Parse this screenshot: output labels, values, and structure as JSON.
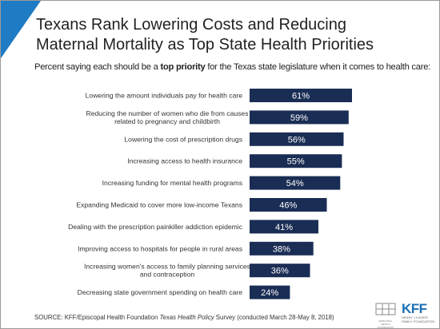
{
  "title": "Texans Rank Lowering Costs and Reducing Maternal Mortality as Top State Health Priorities",
  "subtitle": {
    "before": "Percent saying each should be a ",
    "bold": "top priority",
    "after": " for the Texas state legislature when it comes to health care:"
  },
  "chart_data": {
    "type": "bar",
    "orientation": "horizontal",
    "categories": [
      [
        "Lowering the amount individuals pay for health care"
      ],
      [
        "Reducing the number of women who die from causes",
        "related to pregnancy and childbirth"
      ],
      [
        "Lowering the cost of prescription drugs"
      ],
      [
        "Increasing access to health insurance"
      ],
      [
        "Increasing funding for mental health programs"
      ],
      [
        "Expanding Medicaid to cover more low-income Texans"
      ],
      [
        "Dealing with the prescription painkiller addiction epidemic"
      ],
      [
        "Improving access to hospitals for people in rural areas"
      ],
      [
        "Increasing women's access to family planning services",
        "and contraception"
      ],
      [
        "Decreasing state government spending on health care"
      ]
    ],
    "values": [
      61,
      59,
      56,
      55,
      54,
      46,
      41,
      38,
      36,
      24
    ],
    "value_labels": [
      "61%",
      "59%",
      "56%",
      "55%",
      "54%",
      "46%",
      "41%",
      "38%",
      "36%",
      "24%"
    ],
    "bar_color": "#1a2d54",
    "value_label_color": "#ffffff",
    "xlim": [
      0,
      61
    ],
    "grid": false,
    "legend": "none"
  },
  "source": {
    "before": "SOURCE: KFF/Episcopal Health Foundation ",
    "italic": "Texas Health Policy",
    "after": " Survey (conducted March 28-May 8, 2018)"
  },
  "logos": {
    "ehf": "EPISCOPAL HEALTH FOUNDATION",
    "kff": "KFF",
    "kff_sub_1": "HENRY J KAISER",
    "kff_sub_2": "FAMILY FOUNDATION"
  },
  "colors": {
    "accent": "#1f7bc4",
    "bar": "#1a2d54"
  }
}
